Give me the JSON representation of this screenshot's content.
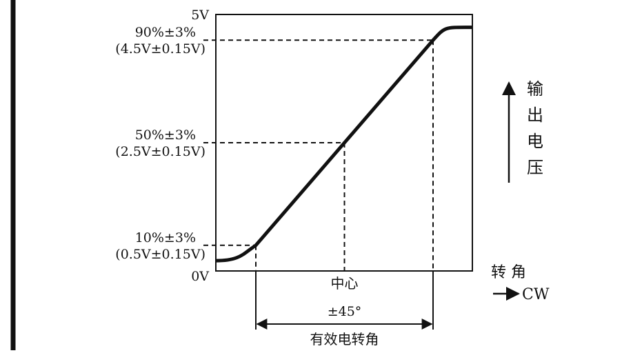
{
  "chart_data": {
    "type": "line",
    "x_unit": "°",
    "ylim": [
      0,
      5
    ],
    "y_ticks": [
      {
        "value": 5.0,
        "label": "5V"
      },
      {
        "value": 0.0,
        "label": "0V"
      }
    ],
    "levels": [
      {
        "value": 4.5,
        "pct": "90%±3%",
        "volt": "(4.5V±0.15V)"
      },
      {
        "value": 2.5,
        "pct": "50%±3%",
        "volt": "(2.5V±0.15V)"
      },
      {
        "value": 0.5,
        "pct": "10%±3%",
        "volt": "(0.5V±0.15V)"
      }
    ],
    "series": [
      {
        "x": [
          -45,
          0,
          45
        ],
        "y": [
          0.5,
          2.5,
          4.5
        ]
      }
    ],
    "center_label": "中心",
    "span_label": "±45°",
    "effective_label": "有效电转角",
    "ylabel": "输出电压",
    "xlabel": "转 角",
    "direction_label": "CW",
    "colors": {
      "line": "#111111",
      "background": "#ffffff"
    }
  }
}
